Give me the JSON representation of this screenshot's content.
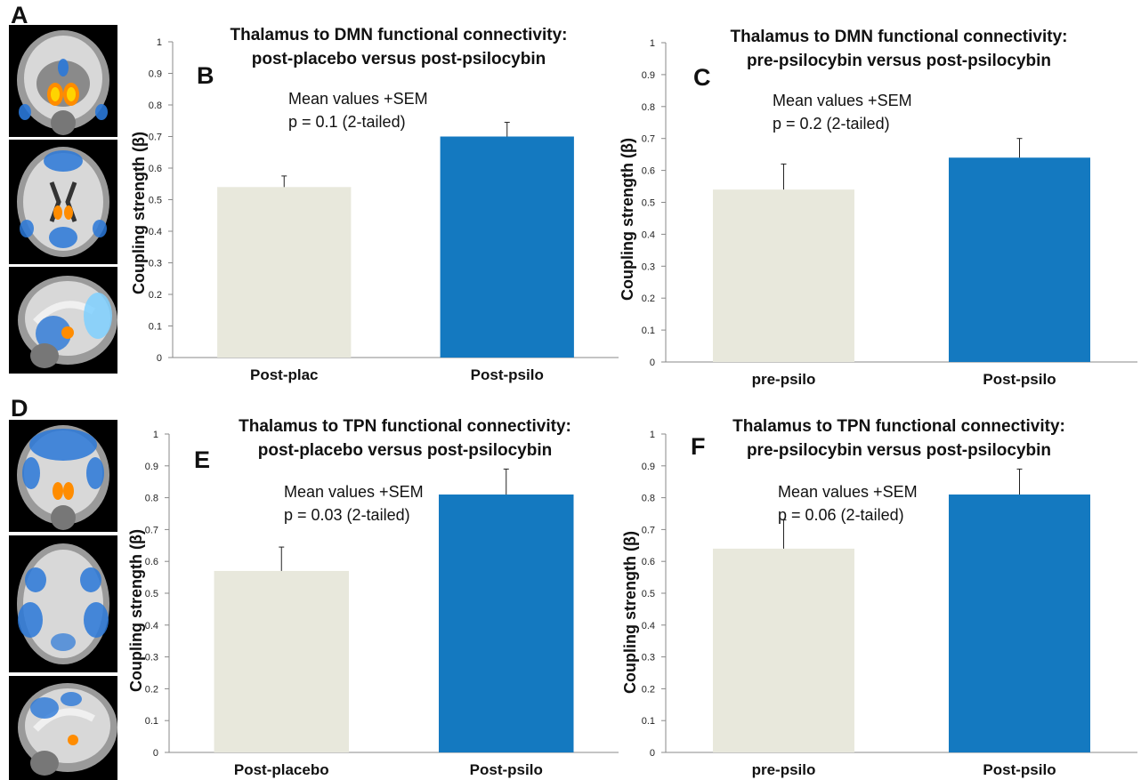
{
  "panel_letters": {
    "A": "A",
    "B": "B",
    "C": "C",
    "D": "D",
    "E": "E",
    "F": "F"
  },
  "colors": {
    "placebo_bar": "#e8e8dc",
    "psilo_bar": "#1479c0",
    "axis": "#888888"
  },
  "chart_data": [
    {
      "id": "B",
      "type": "bar",
      "title": [
        "Thalamus to DMN functional connectivity:",
        "post-placebo versus post-psilocybin"
      ],
      "annotation": [
        "Mean values +SEM",
        "p = 0.1 (2-tailed)"
      ],
      "ylabel": "Coupling strength (β)",
      "ylim": [
        0,
        1
      ],
      "ticks": [
        "0",
        "0.1",
        "0.2",
        "0.3",
        "0.4",
        "0.5",
        "0.6",
        "0.7",
        "0.8",
        "0.9",
        "1"
      ],
      "categories": [
        "Post-plac",
        "Post-psilo"
      ],
      "values": [
        0.54,
        0.7
      ],
      "errors": [
        0.035,
        0.045
      ]
    },
    {
      "id": "C",
      "type": "bar",
      "title": [
        "Thalamus to DMN functional connectivity:",
        "pre-psilocybin versus post-psilocybin"
      ],
      "annotation": [
        "Mean values +SEM",
        "p = 0.2 (2-tailed)"
      ],
      "ylabel": "Coupling strength (β)",
      "ylim": [
        0,
        1
      ],
      "ticks": [
        "0",
        "0.1",
        "0.2",
        "0.3",
        "0.4",
        "0.5",
        "0.6",
        "0.7",
        "0.8",
        "0.9",
        "1"
      ],
      "categories": [
        "pre-psilo",
        "Post-psilo"
      ],
      "values": [
        0.54,
        0.64
      ],
      "errors": [
        0.08,
        0.06
      ]
    },
    {
      "id": "E",
      "type": "bar",
      "title": [
        "Thalamus to TPN functional connectivity:",
        "post-placebo versus post-psilocybin"
      ],
      "annotation": [
        "Mean values +SEM",
        "p = 0.03 (2-tailed)"
      ],
      "ylabel": "Coupling strength (β)",
      "ylim": [
        0,
        1
      ],
      "ticks": [
        "0",
        "0.1",
        "0.2",
        "0.3",
        "0.4",
        "0.5",
        "0.6",
        "0.7",
        "0.8",
        "0.9",
        "1"
      ],
      "categories": [
        "Post-placebo",
        "Post-psilo"
      ],
      "values": [
        0.57,
        0.81
      ],
      "errors": [
        0.075,
        0.08
      ]
    },
    {
      "id": "F",
      "type": "bar",
      "title": [
        "Thalamus to TPN functional connectivity:",
        "pre-psilocybin versus post-psilocybin"
      ],
      "annotation": [
        "Mean values +SEM",
        "p = 0.06 (2-tailed)"
      ],
      "ylabel": "Coupling strength (β)",
      "ylim": [
        0,
        1
      ],
      "ticks": [
        "0",
        "0.1",
        "0.2",
        "0.3",
        "0.4",
        "0.5",
        "0.6",
        "0.7",
        "0.8",
        "0.9",
        "1"
      ],
      "categories": [
        "pre-psilo",
        "Post-psilo"
      ],
      "values": [
        0.64,
        0.81
      ],
      "errors": [
        0.09,
        0.08
      ]
    }
  ]
}
